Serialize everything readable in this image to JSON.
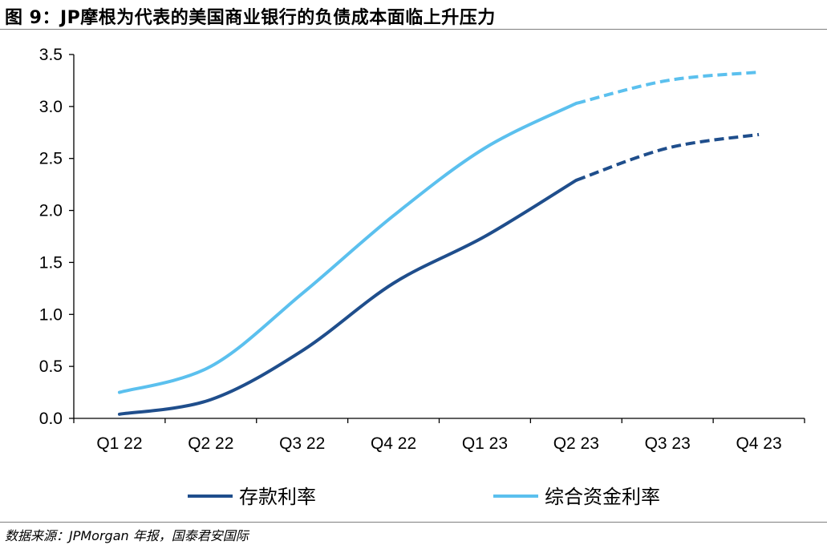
{
  "figure": {
    "title": "图 9：JP摩根为代表的美国商业银行的负债成本面临上升压力",
    "source": "数据来源：JPMorgan 年报，国泰君安国际"
  },
  "chart_data": {
    "type": "line",
    "categories": [
      "Q1 22",
      "Q2 22",
      "Q3 22",
      "Q4 22",
      "Q1 23",
      "Q2 23",
      "Q3 23",
      "Q4 23"
    ],
    "series": [
      {
        "name": "存款利率",
        "color": "#1f4e8c",
        "values": [
          0.04,
          0.18,
          0.65,
          1.3,
          1.75,
          2.29,
          2.6,
          2.73
        ],
        "forecast_from_index": 5
      },
      {
        "name": "综合资金利率",
        "color": "#5bc0ee",
        "values": [
          0.25,
          0.5,
          1.2,
          1.95,
          2.6,
          3.03,
          3.25,
          3.33
        ],
        "forecast_from_index": 5
      }
    ],
    "yticks": [
      "0.0",
      "0.5",
      "1.0",
      "1.5",
      "2.0",
      "2.5",
      "3.0",
      "3.5"
    ],
    "ylim": [
      0,
      3.5
    ],
    "grid": false,
    "legend_position": "bottom"
  }
}
